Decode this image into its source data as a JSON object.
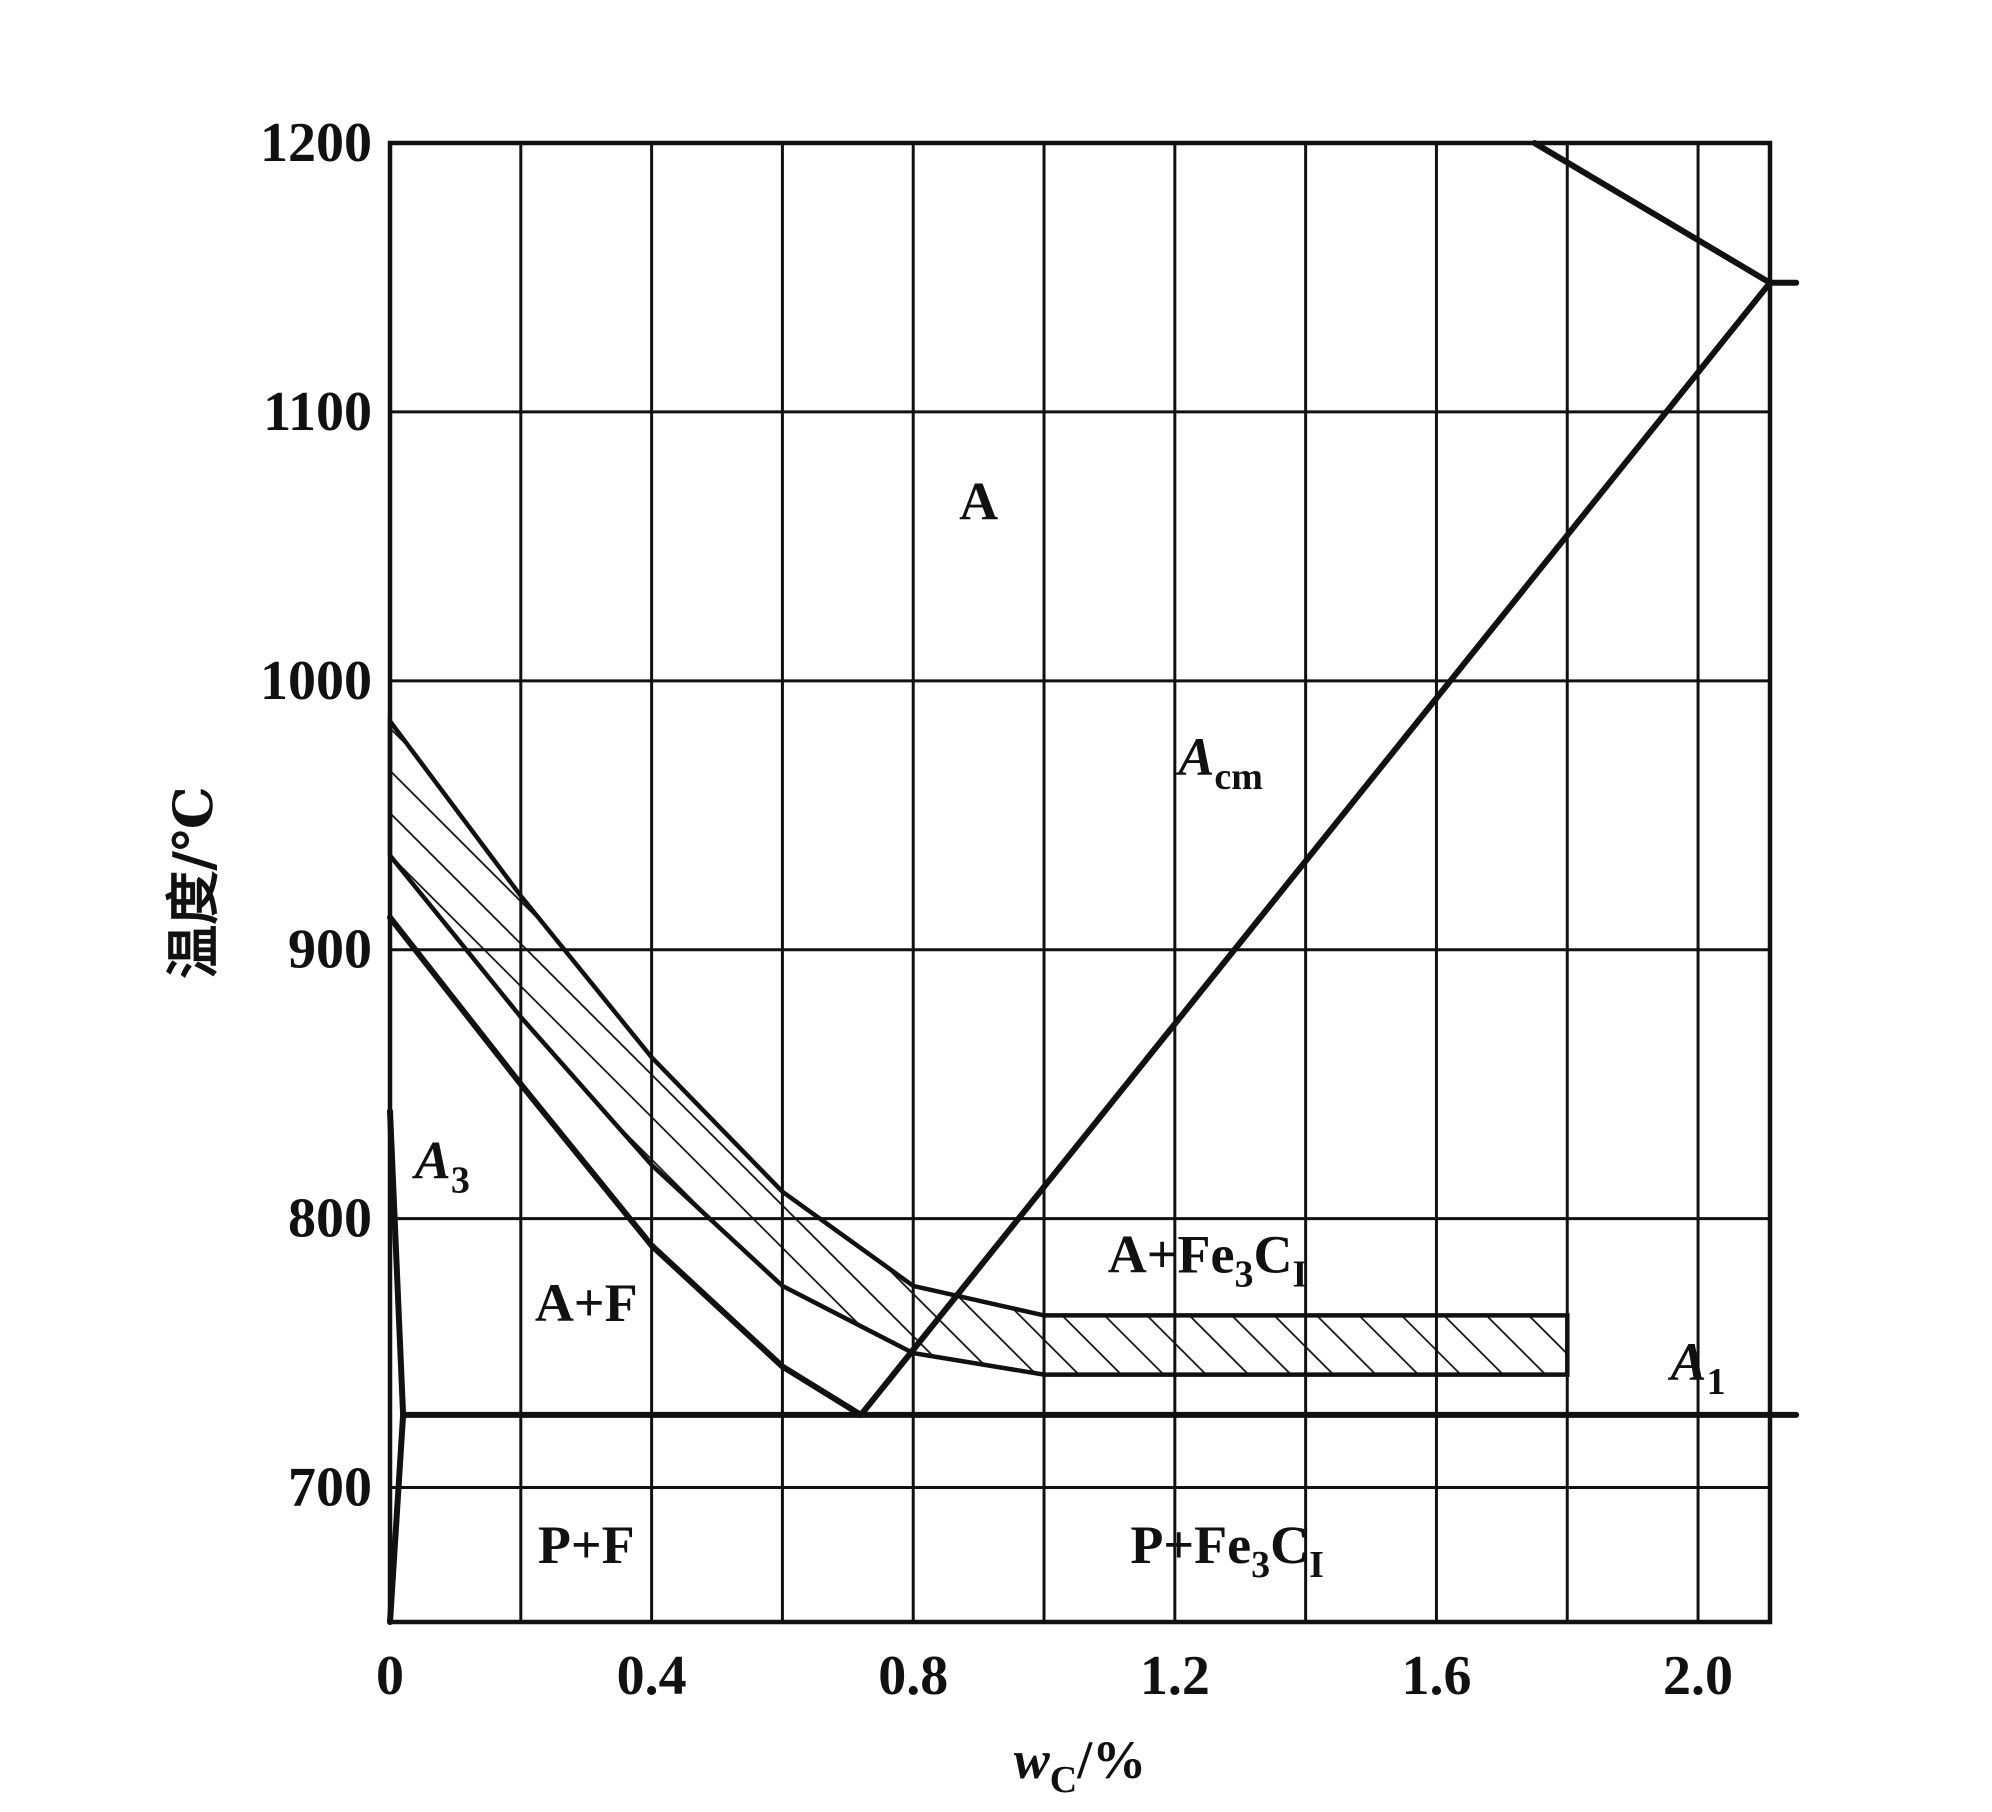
{
  "chart_data": {
    "type": "line",
    "title": "",
    "xlabel": "w",
    "xlabel_sub": "C",
    "xlabel_unit": "/%",
    "ylabel": "温度/℃",
    "xlim": [
      0,
      2.11
    ],
    "ylim": [
      650,
      1200
    ],
    "x_ticks": [
      0,
      0.4,
      0.8,
      1.2,
      1.6,
      2.0
    ],
    "x_tick_labels": [
      "0",
      "0.4",
      "0.8",
      "1.2",
      "1.6",
      "2.0"
    ],
    "x_gridlines": [
      0,
      0.2,
      0.4,
      0.6,
      0.8,
      1.0,
      1.2,
      1.4,
      1.6,
      1.8,
      2.0
    ],
    "y_ticks": [
      700,
      800,
      900,
      1000,
      1100,
      1200
    ],
    "y_tick_labels": [
      "700",
      "800",
      "900",
      "1000",
      "1100",
      "1200"
    ],
    "grid": true,
    "series": [
      {
        "name": "A3",
        "points": [
          [
            0,
            912
          ],
          [
            0.2,
            850
          ],
          [
            0.4,
            790
          ],
          [
            0.6,
            745
          ],
          [
            0.72,
            727
          ]
        ]
      },
      {
        "name": "Acm",
        "points": [
          [
            0.72,
            727
          ],
          [
            2.11,
            1148
          ]
        ]
      },
      {
        "name": "E-line",
        "points": [
          [
            1.75,
            1200
          ],
          [
            2.11,
            1148
          ],
          [
            2.15,
            1148
          ]
        ]
      },
      {
        "name": "A1",
        "points": [
          [
            0.02,
            727
          ],
          [
            2.15,
            727
          ]
        ]
      },
      {
        "name": "solvus",
        "points": [
          [
            0,
            840
          ],
          [
            0.02,
            727
          ],
          [
            0,
            650
          ]
        ]
      },
      {
        "name": "hatched-band-upper",
        "points": [
          [
            0,
            985
          ],
          [
            0.2,
            920
          ],
          [
            0.4,
            860
          ],
          [
            0.6,
            810
          ],
          [
            0.8,
            775
          ],
          [
            1.0,
            764
          ],
          [
            1.8,
            764
          ]
        ]
      },
      {
        "name": "hatched-band-lower",
        "points": [
          [
            0,
            935
          ],
          [
            0.2,
            875
          ],
          [
            0.4,
            820
          ],
          [
            0.6,
            775
          ],
          [
            0.8,
            750
          ],
          [
            1.0,
            742
          ],
          [
            1.8,
            742
          ]
        ]
      }
    ],
    "annotations": [
      {
        "text": "A",
        "x": 0.9,
        "y": 1060
      },
      {
        "text": "A",
        "sub": "cm",
        "italic": true,
        "x": 1.27,
        "y": 965
      },
      {
        "text": "A",
        "sub": "3",
        "italic": true,
        "x": 0.08,
        "y": 815
      },
      {
        "text": "A+F",
        "x": 0.3,
        "y": 762
      },
      {
        "text": "A+Fe",
        "sub": "3",
        "rest": "C",
        "sub2": "I",
        "x": 1.25,
        "y": 780
      },
      {
        "text": "A",
        "sub": "1",
        "italic": true,
        "x": 2.0,
        "y": 740
      },
      {
        "text": "P+F",
        "x": 0.3,
        "y": 672
      },
      {
        "text": "P+Fe",
        "sub": "3",
        "rest": "C",
        "sub2": "I",
        "x": 1.28,
        "y": 672
      }
    ]
  }
}
